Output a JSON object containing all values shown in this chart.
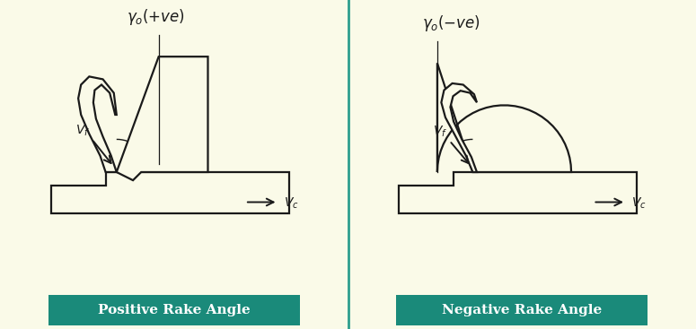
{
  "bg_color": "#FAFAE8",
  "border_color": "#2E9E8E",
  "teal_color": "#1A8A7A",
  "line_color": "#1a1a1a",
  "label_color": "#1a1a1a",
  "title_left": "Positive Rake Angle",
  "title_right": "Negative Rake Angle",
  "figsize": [
    7.75,
    3.67
  ],
  "dpi": 100
}
